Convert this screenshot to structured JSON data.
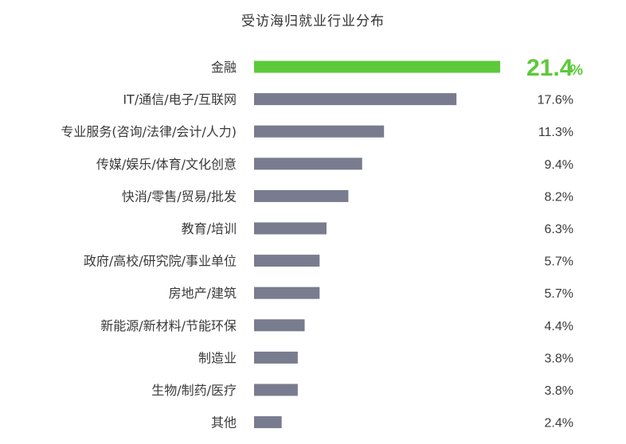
{
  "chart_data": {
    "type": "bar",
    "orientation": "horizontal",
    "title": "受访海归就业行业分布",
    "categories": [
      "金融",
      "IT/通信/电子/互联网",
      "专业服务(咨询/法律/会计/人力)",
      "传媒/娱乐/体育/文化创意",
      "快消/零售/贸易/批发",
      "教育/培训",
      "政府/高校/研究院/事业单位",
      "房地产/建筑",
      "新能源/新材料/节能环保",
      "制造业",
      "生物/制药/医疗",
      "其他"
    ],
    "values": [
      21.4,
      17.6,
      11.3,
      9.4,
      8.2,
      6.3,
      5.7,
      5.7,
      4.4,
      3.8,
      3.8,
      2.4
    ],
    "value_labels": [
      "21.4",
      "17.6%",
      "11.3%",
      "9.4%",
      "8.2%",
      "6.3%",
      "5.7%",
      "5.7%",
      "4.4%",
      "3.8%",
      "3.8%",
      "2.4%"
    ],
    "highlight_suffix": "%",
    "highlight_index": 0,
    "xlim": [
      0,
      21.4
    ],
    "grid": false,
    "colors": {
      "highlight": "#5cc93a",
      "bar": "#787c8e",
      "label": "#3a3a3a"
    }
  }
}
